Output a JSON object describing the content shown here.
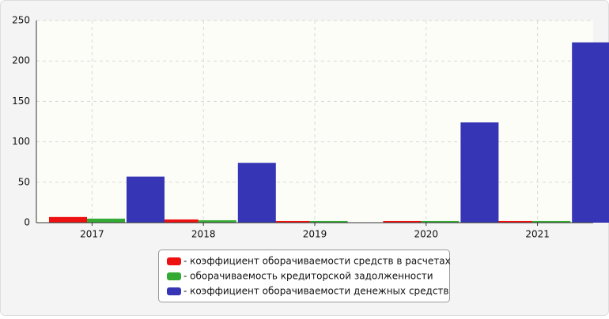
{
  "chart_data": {
    "type": "bar",
    "categories": [
      "2017",
      "2018",
      "2019",
      "2020",
      "2021"
    ],
    "series": [
      {
        "name": "- коэффициент оборачиваемости средств в расчетах",
        "color": "#ee1111",
        "values": [
          7,
          4,
          2,
          2,
          2
        ]
      },
      {
        "name": "- оборачиваемость кредиторской задолженности",
        "color": "#33aa33",
        "values": [
          5,
          3,
          2,
          2,
          2
        ]
      },
      {
        "name": "- коэффициент оборачиваемости денежных средств",
        "color": "#3535b5",
        "values": [
          57,
          74,
          0,
          124,
          223
        ]
      }
    ],
    "ylim": [
      0,
      250
    ],
    "yticks": [
      0,
      50,
      100,
      150,
      200,
      250
    ],
    "grid": true,
    "legend": "bottom"
  }
}
